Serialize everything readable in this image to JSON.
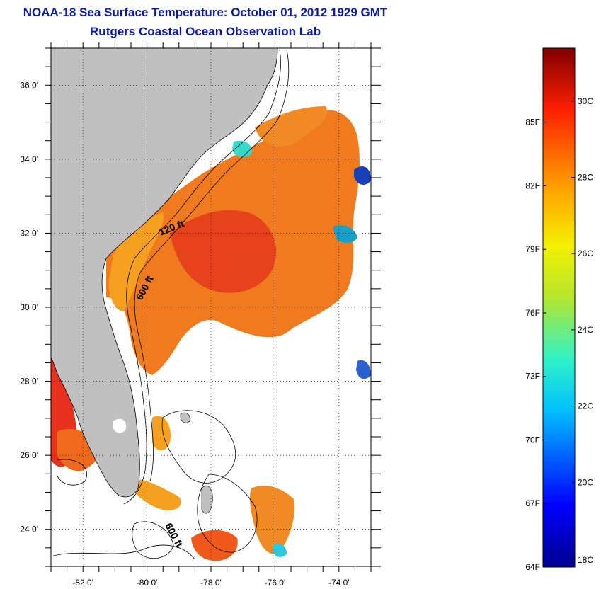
{
  "header": {
    "title": "NOAA-18 Sea Surface Temperature:  October 01, 2012 1929 GMT",
    "subtitle": "Rutgers Coastal Ocean Observation Lab"
  },
  "map": {
    "lon_range": [
      -83.0,
      -73.0
    ],
    "lat_range": [
      23.0,
      37.0
    ],
    "x_ticks": [
      {
        "v": -82,
        "label": "-82 0'"
      },
      {
        "v": -80,
        "label": "-80 0'"
      },
      {
        "v": -78,
        "label": "-78 0'"
      },
      {
        "v": -76,
        "label": "-76 0'"
      },
      {
        "v": -74,
        "label": "-74 0'"
      }
    ],
    "y_ticks": [
      {
        "v": 36,
        "label": "36 0'"
      },
      {
        "v": 34,
        "label": "34 0'"
      },
      {
        "v": 32,
        "label": "32 0'"
      },
      {
        "v": 30,
        "label": "30 0'"
      },
      {
        "v": 28,
        "label": "28 0'"
      },
      {
        "v": 26,
        "label": "26 0'"
      },
      {
        "v": 24,
        "label": "24 0'"
      }
    ],
    "contour_labels": [
      "120 ft",
      "600 ft",
      "600 ft"
    ],
    "colors": {
      "land": "#c0c0c0",
      "water_warm": "#f07a1e",
      "water_hot": "#e63a1c",
      "water_mild": "#f5a020"
    }
  },
  "colorbar": {
    "f_labels": [
      "85F",
      "82F",
      "79F",
      "76F",
      "73F",
      "70F",
      "67F",
      "64F"
    ],
    "c_labels": [
      "30C",
      "28C",
      "26C",
      "24C",
      "22C",
      "20C",
      "18C"
    ],
    "f_values": [
      85,
      82,
      79,
      76,
      73,
      70,
      67,
      64
    ],
    "c_values": [
      30,
      28,
      26,
      24,
      22,
      20,
      18
    ],
    "min_f": 64,
    "max_f": 88.5
  }
}
